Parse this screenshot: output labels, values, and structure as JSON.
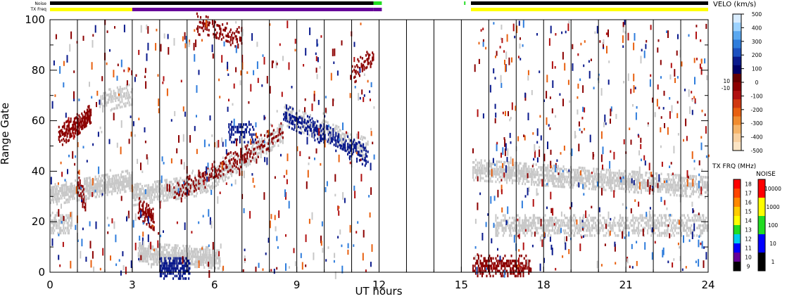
{
  "chart_data": {
    "type": "heatmap",
    "x_axis": {
      "label": "UT hours",
      "ticks": [
        0,
        3,
        6,
        9,
        12,
        15,
        18,
        21,
        24
      ],
      "range": [
        0,
        24
      ]
    },
    "y_axis": {
      "label": "Range Gate",
      "ticks": [
        0,
        20,
        40,
        60,
        80,
        100
      ],
      "range": [
        0,
        100
      ]
    },
    "top_bars": {
      "noise_label": "Noise",
      "txfreq_label": "TX Freq",
      "noise_segments": [
        {
          "start": 0.0,
          "end": 11.8,
          "color": "#000000"
        },
        {
          "start": 11.8,
          "end": 12.1,
          "color": "#22dd22"
        },
        {
          "start": 15.1,
          "end": 15.15,
          "color": "#22dd22"
        },
        {
          "start": 15.35,
          "end": 24.0,
          "color": "#000000"
        }
      ],
      "txfreq_segments": [
        {
          "start": 0.0,
          "end": 3.0,
          "color": "#ffff00"
        },
        {
          "start": 3.0,
          "end": 11.8,
          "color": "#660099"
        },
        {
          "start": 11.8,
          "end": 12.1,
          "color": "#660099"
        },
        {
          "start": 15.35,
          "end": 24.0,
          "color": "#ffff00"
        }
      ]
    },
    "velo_scale": {
      "title": "VELO (km/s)",
      "tick_labels": [
        "500",
        "400",
        "300",
        "200",
        "100",
        "0",
        "-100",
        "-200",
        "-300",
        "-400",
        "-500"
      ],
      "side_labels": [
        "10",
        "-10"
      ],
      "colors": [
        "#d8ecff",
        "#9cd2ff",
        "#5aa8f0",
        "#2f7ddc",
        "#1c50c0",
        "#0a1a8c",
        "#000066",
        "#660000",
        "#8c0000",
        "#b01010",
        "#d03810",
        "#e86010",
        "#f08c30",
        "#f5b46a",
        "#f8d0a0",
        "#fbe4c4"
      ]
    },
    "txfreq_scale": {
      "title": "TX FRQ (MHz)",
      "tick_labels": [
        "18",
        "17",
        "16",
        "15",
        "14",
        "13",
        "12",
        "11",
        "10",
        "9"
      ],
      "colors": [
        "#ff0000",
        "#ff4400",
        "#ff8800",
        "#ffcc00",
        "#ffff00",
        "#22dd22",
        "#00ccee",
        "#0000ff",
        "#660099",
        "#000000"
      ]
    },
    "noise_scale": {
      "title": "NOISE",
      "tick_labels": [
        "10000",
        "1000",
        "100",
        "10",
        "1"
      ],
      "colors": [
        "#ff0000",
        "#ffff00",
        "#22dd22",
        "#0000ff",
        "#000000"
      ]
    },
    "features": [
      {
        "name": "ground scatter",
        "color": "#c8c8c8",
        "t_start": 0.0,
        "t_end": 3.0,
        "gate_from": 30,
        "gate_to": 36,
        "density": 0.9
      },
      {
        "name": "ground scatter",
        "color": "#c8c8c8",
        "t_start": 3.0,
        "t_end": 5.5,
        "gate_from": 30,
        "gate_to": 34,
        "density": 0.8
      },
      {
        "name": "ground scatter",
        "color": "#c8c8c8",
        "t_start": 5.5,
        "t_end": 8.5,
        "gate_from": 34,
        "gate_to": 55,
        "density": 0.6
      },
      {
        "name": "ground scatter",
        "color": "#c8c8c8",
        "t_start": 8.5,
        "t_end": 11.6,
        "gate_from": 62,
        "gate_to": 48,
        "density": 0.6
      },
      {
        "name": "ground scatter",
        "color": "#c8c8c8",
        "t_start": 3.2,
        "t_end": 6.2,
        "gate_from": 7,
        "gate_to": 5,
        "density": 0.9
      },
      {
        "name": "ground scatter",
        "color": "#c8c8c8",
        "t_start": 15.4,
        "t_end": 24.0,
        "gate_from": 40,
        "gate_to": 33,
        "density": 0.8
      },
      {
        "name": "ground scatter",
        "color": "#c8c8c8",
        "t_start": 16.2,
        "t_end": 24.0,
        "gate_from": 18,
        "gate_to": 18,
        "density": 0.6
      },
      {
        "name": "ground scatter",
        "color": "#c8c8c8",
        "t_start": 0.0,
        "t_end": 0.8,
        "gate_from": 19,
        "gate_to": 19,
        "density": 0.6
      },
      {
        "name": "ground scatter",
        "color": "#c8c8c8",
        "t_start": 1.8,
        "t_end": 3.0,
        "gate_from": 67,
        "gate_to": 70,
        "density": 0.6
      },
      {
        "name": "negative velocity",
        "color": "#8c0000",
        "t_start": 0.3,
        "t_end": 1.5,
        "gate_from": 53,
        "gate_to": 62,
        "density": 0.8
      },
      {
        "name": "negative velocity",
        "color": "#8c0000",
        "t_start": 1.0,
        "t_end": 1.3,
        "gate_from": 35,
        "gate_to": 25,
        "density": 0.7
      },
      {
        "name": "negative velocity",
        "color": "#8c0000",
        "t_start": 3.2,
        "t_end": 3.8,
        "gate_from": 25,
        "gate_to": 20,
        "density": 0.7
      },
      {
        "name": "negative velocity",
        "color": "#8c0000",
        "t_start": 4.5,
        "t_end": 8.5,
        "gate_from": 30,
        "gate_to": 55,
        "density": 0.35
      },
      {
        "name": "negative velocity",
        "color": "#8c0000",
        "t_start": 5.3,
        "t_end": 7.0,
        "gate_from": 98,
        "gate_to": 92,
        "density": 0.35
      },
      {
        "name": "negative velocity",
        "color": "#8c0000",
        "t_start": 11.0,
        "t_end": 11.8,
        "gate_from": 78,
        "gate_to": 85,
        "density": 0.4
      },
      {
        "name": "negative velocity",
        "color": "#8c0000",
        "t_start": 15.4,
        "t_end": 17.5,
        "gate_from": 2,
        "gate_to": 2,
        "density": 0.6
      },
      {
        "name": "positive velocity",
        "color": "#0a1a8c",
        "t_start": 8.5,
        "t_end": 11.6,
        "gate_from": 62,
        "gate_to": 45,
        "density": 0.5
      },
      {
        "name": "positive velocity",
        "color": "#0a1a8c",
        "t_start": 4.0,
        "t_end": 5.1,
        "gate_from": 1,
        "gate_to": 1,
        "density": 0.8
      },
      {
        "name": "positive velocity",
        "color": "#0a1a8c",
        "t_start": 6.5,
        "t_end": 7.5,
        "gate_from": 55,
        "gate_to": 55,
        "density": 0.4
      }
    ]
  }
}
